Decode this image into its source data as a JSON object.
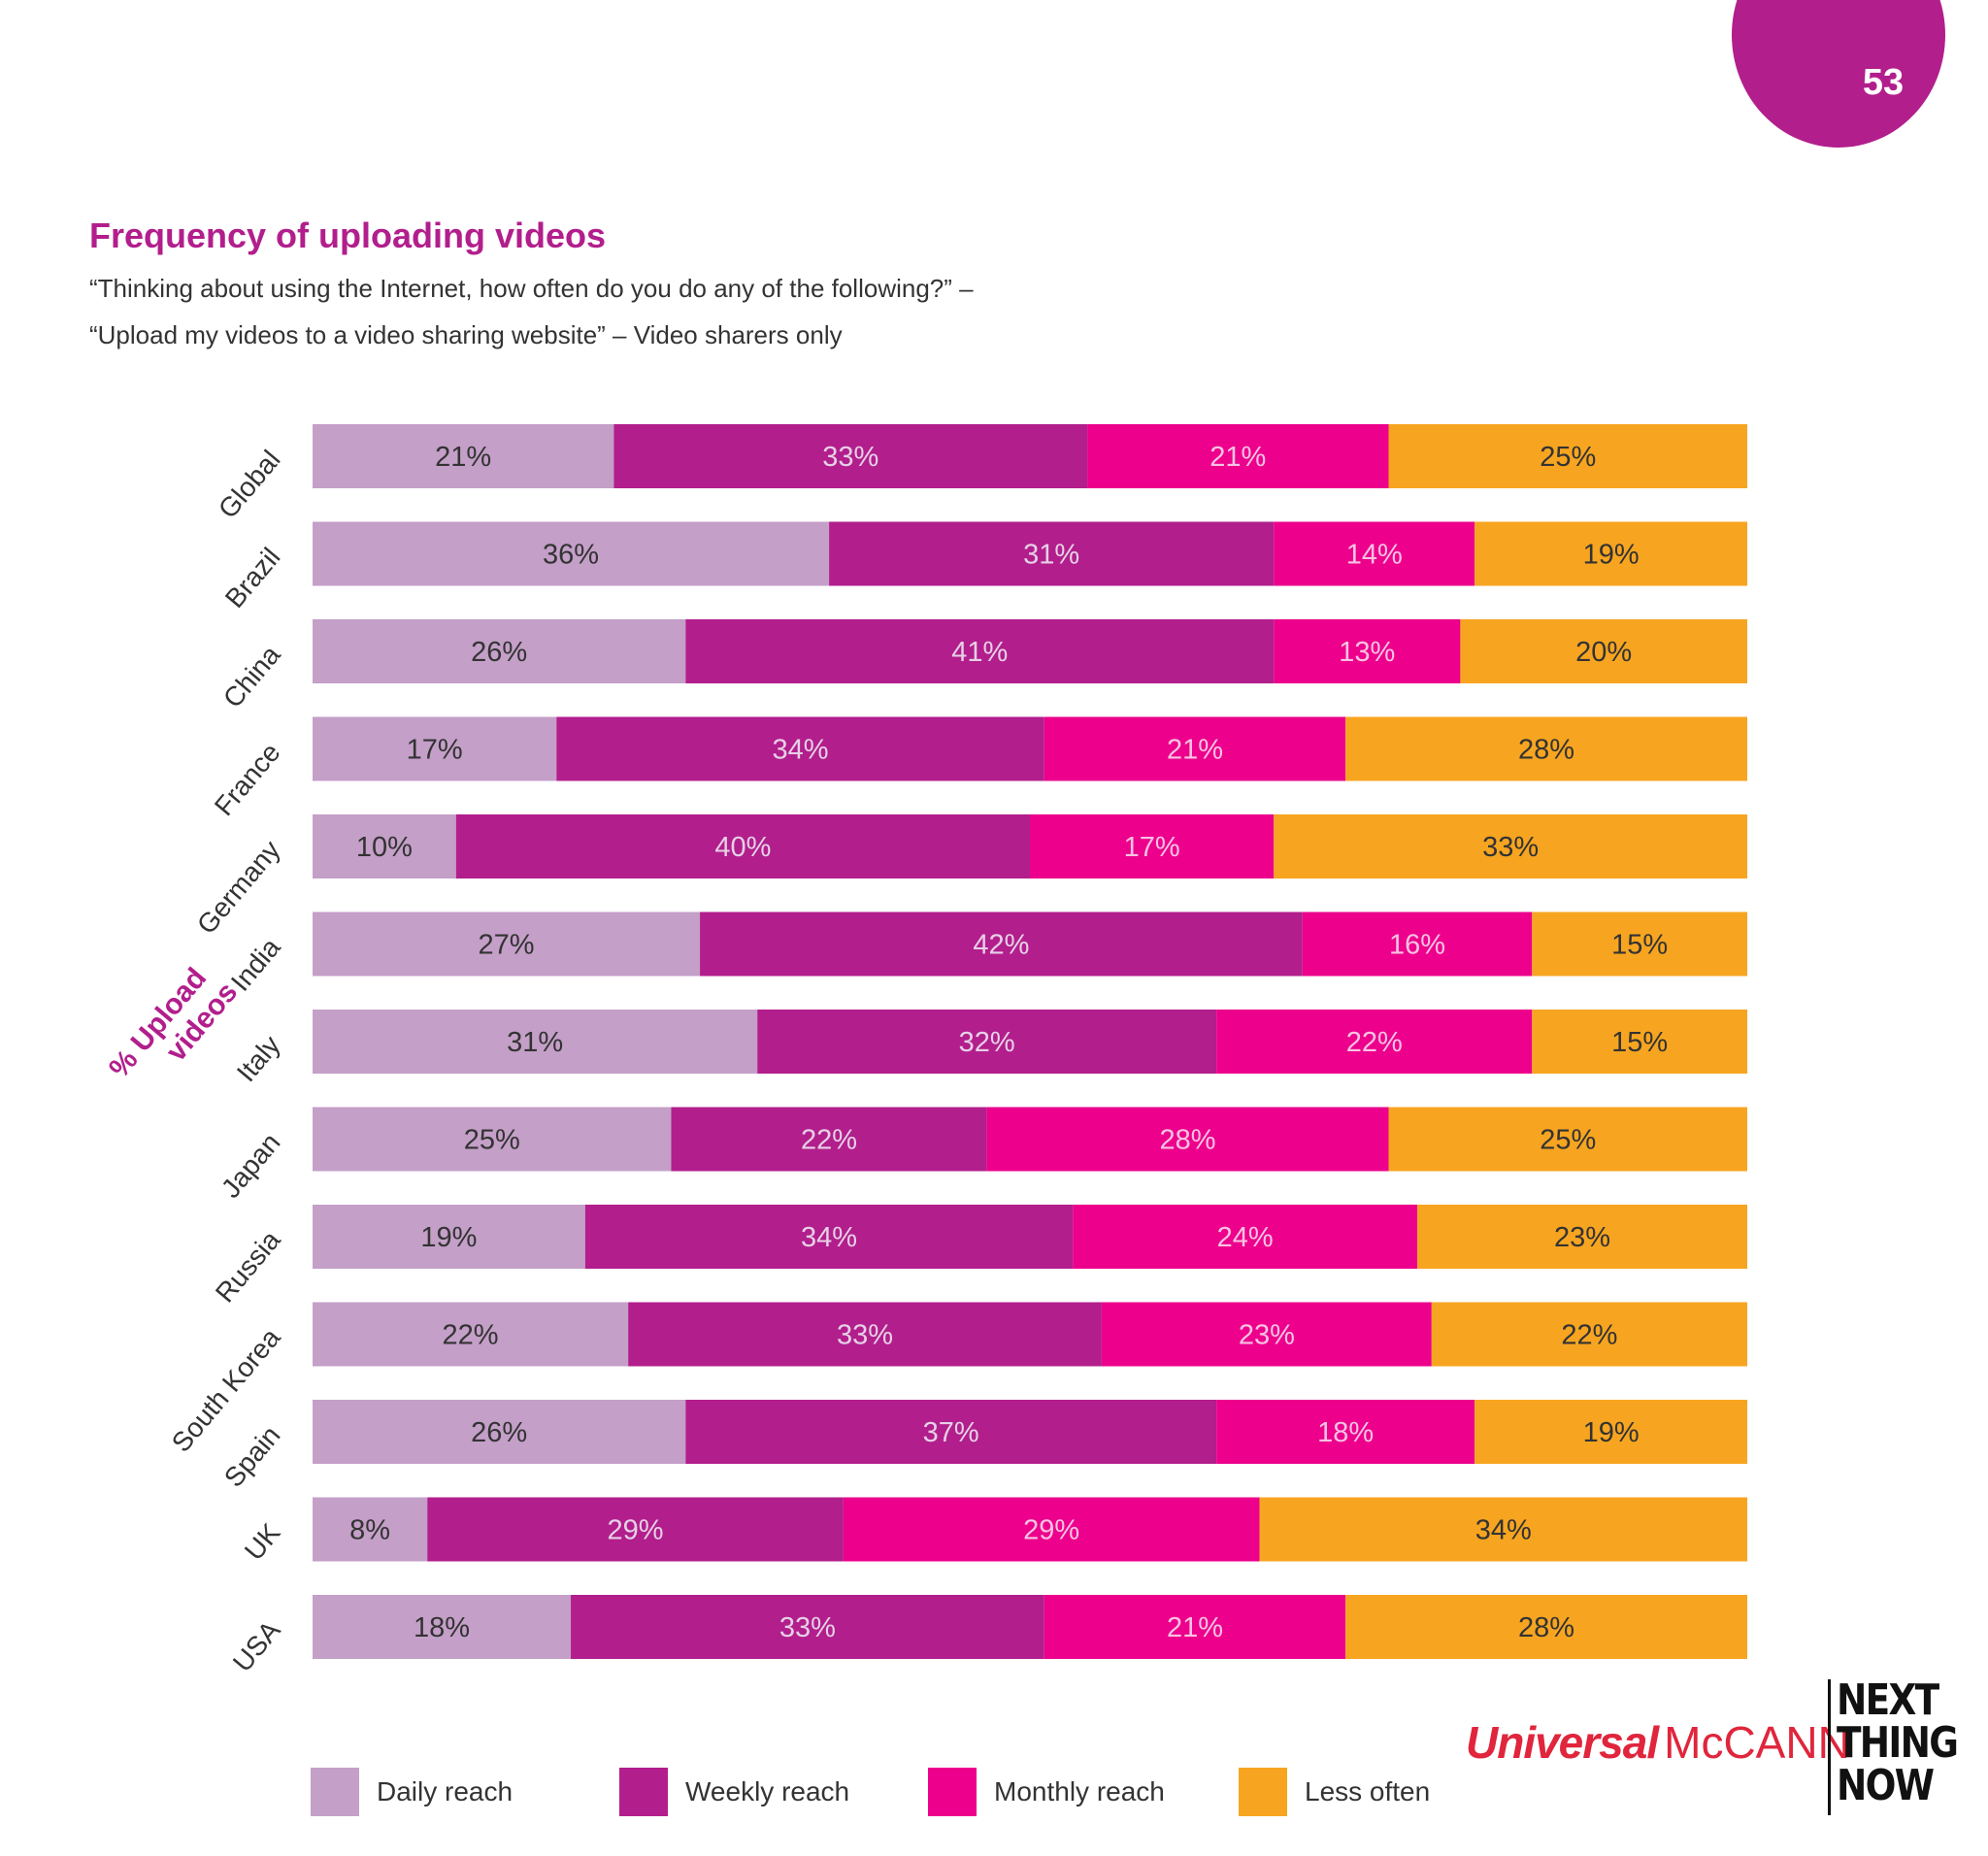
{
  "page_number": "53",
  "title": "Frequency of uploading videos",
  "subtitle_lines": [
    "“Thinking about using the Internet, how often do you do any of the following?” –",
    "“Upload my videos to a video sharing website” – Video sharers only"
  ],
  "brand": {
    "universal": "Universal",
    "mccann": "McCANN",
    "ntn": [
      "NEXT",
      "THING",
      "NOW"
    ]
  },
  "colors": {
    "daily": "#c49fc8",
    "weekly": "#b21e8c",
    "monthly": "#ec008c",
    "less": "#f7a520"
  },
  "chart_data": {
    "type": "bar",
    "orientation": "horizontal-stacked",
    "title": "Frequency of uploading videos",
    "ylabel": "% Upload videos",
    "xlim": [
      0,
      100
    ],
    "grid": false,
    "legend_position": "bottom",
    "categories": [
      "Global",
      "Brazil",
      "China",
      "France",
      "Germany",
      "India",
      "Italy",
      "Japan",
      "Russia",
      "South Korea",
      "Spain",
      "UK",
      "USA"
    ],
    "series": [
      {
        "name": "Daily reach",
        "color": "#c49fc8",
        "values": [
          21,
          36,
          26,
          17,
          10,
          27,
          31,
          25,
          19,
          22,
          26,
          8,
          18
        ]
      },
      {
        "name": "Weekly reach",
        "color": "#b21e8c",
        "values": [
          33,
          31,
          41,
          34,
          40,
          42,
          32,
          22,
          34,
          33,
          37,
          29,
          33
        ]
      },
      {
        "name": "Monthly reach",
        "color": "#ec008c",
        "values": [
          21,
          14,
          13,
          21,
          17,
          16,
          22,
          28,
          24,
          23,
          18,
          29,
          21
        ]
      },
      {
        "name": "Less often",
        "color": "#f7a520",
        "values": [
          25,
          19,
          20,
          28,
          33,
          15,
          15,
          25,
          23,
          22,
          19,
          34,
          28
        ]
      }
    ]
  }
}
